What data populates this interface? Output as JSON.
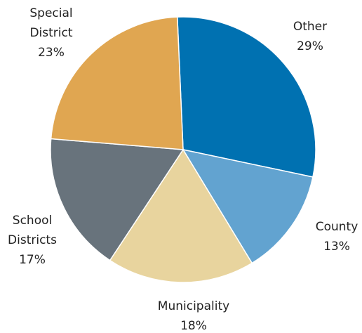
{
  "chart_data": {
    "type": "pie",
    "categories": [
      "Other",
      "County",
      "Municipality",
      "School Districts",
      "Special District"
    ],
    "values": [
      29,
      13,
      18,
      17,
      23
    ],
    "value_labels": [
      "29%",
      "13%",
      "18%",
      "17%",
      "23%"
    ],
    "colors": [
      "#0071b1",
      "#62a3d0",
      "#e8d49e",
      "#68737c",
      "#e0a651"
    ]
  }
}
